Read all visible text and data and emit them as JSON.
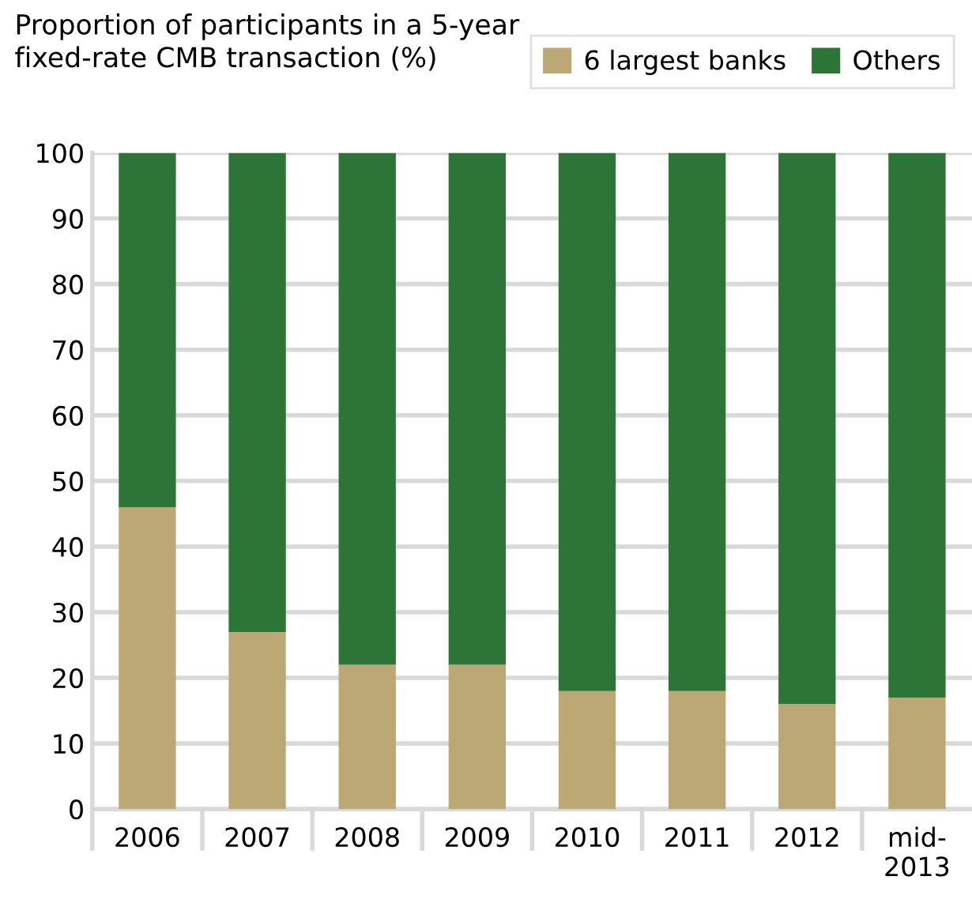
{
  "chart_data": {
    "type": "bar",
    "stacked": true,
    "title": "Proportion of participants in a 5-year\nfixed-rate CMB transaction (%)",
    "categories": [
      "2006",
      "2007",
      "2008",
      "2009",
      "2010",
      "2011",
      "2012",
      "mid-\n2013"
    ],
    "series": [
      {
        "name": "6 largest banks",
        "color": "#bca874",
        "values": [
          46,
          27,
          22,
          22,
          18,
          18,
          16,
          17
        ]
      },
      {
        "name": "Others",
        "color": "#2c7536",
        "values": [
          54,
          73,
          78,
          78,
          82,
          82,
          84,
          83
        ]
      }
    ],
    "ylim": [
      0,
      100
    ],
    "yticks": [
      0,
      10,
      20,
      30,
      40,
      50,
      60,
      70,
      80,
      90,
      100
    ],
    "grid": "y",
    "legend": "top right"
  }
}
